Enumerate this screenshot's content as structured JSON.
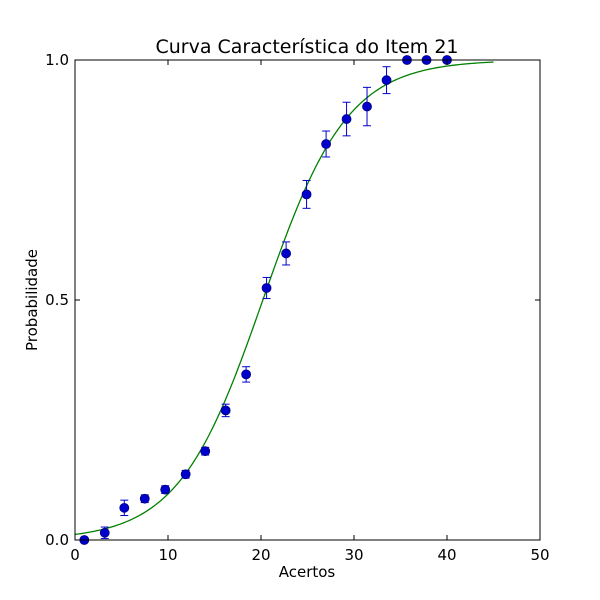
{
  "chart_data": {
    "type": "scatter",
    "title": "Curva Característica do Item 21",
    "xlabel": "Acertos",
    "ylabel": "Probabilidade",
    "xlim": [
      0,
      50
    ],
    "ylim": [
      0.0,
      1.0
    ],
    "x_ticks": [
      0,
      10,
      20,
      30,
      40,
      50
    ],
    "x_tick_labels": [
      "0",
      "10",
      "20",
      "30",
      "40",
      "50"
    ],
    "y_ticks": [
      0.0,
      0.5,
      1.0
    ],
    "y_tick_labels": [
      "0.0",
      "0.5",
      "1.0"
    ],
    "grid": false,
    "legend": "none",
    "series": [
      {
        "kind": "points-with-error",
        "color": "#0000cc",
        "x": [
          1.0,
          3.2,
          5.3,
          7.5,
          9.7,
          11.9,
          14.0,
          16.2,
          18.4,
          20.6,
          22.7,
          24.9,
          27.0,
          29.2,
          31.4,
          33.5,
          35.7,
          37.8,
          40.0
        ],
        "y": [
          0.0,
          0.015,
          0.067,
          0.086,
          0.105,
          0.137,
          0.185,
          0.27,
          0.345,
          0.525,
          0.597,
          0.72,
          0.825,
          0.877,
          0.903,
          0.958,
          1.0,
          1.0,
          1.0
        ],
        "yerr": [
          0.0,
          0.012,
          0.016,
          0.008,
          0.008,
          0.008,
          0.008,
          0.013,
          0.016,
          0.022,
          0.024,
          0.029,
          0.027,
          0.035,
          0.04,
          0.028,
          0.0,
          0.0,
          0.0
        ]
      },
      {
        "kind": "logistic-curve",
        "color": "#008000",
        "x_range": [
          0,
          45
        ],
        "midpoint": 20.2,
        "slope": 0.22
      }
    ]
  }
}
